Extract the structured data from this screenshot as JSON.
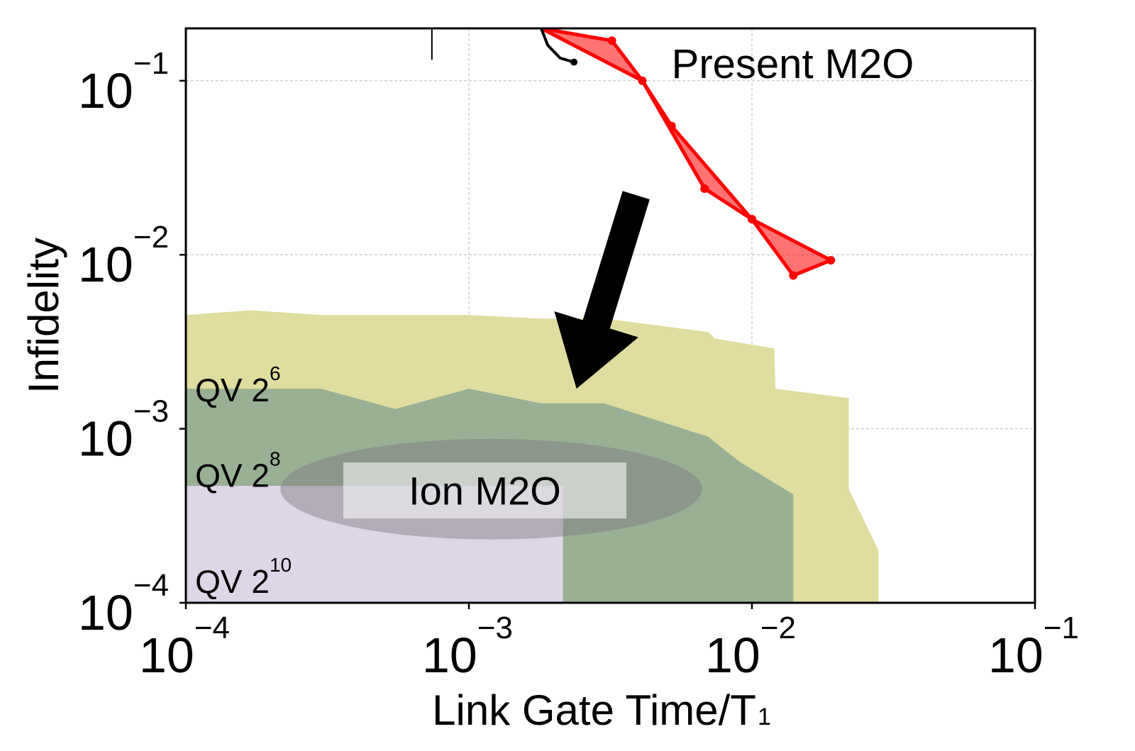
{
  "chart_data": {
    "type": "area",
    "title": "",
    "xlabel": "Link Gate Time/T",
    "xlabel_sub": "1",
    "ylabel": "Infidelity",
    "xscale": "log",
    "yscale": "log",
    "xlim": [
      0.0001,
      0.1
    ],
    "ylim": [
      0.0001,
      0.2
    ],
    "grid": true,
    "x_ticks": [
      {
        "base": "10",
        "exp": "−4",
        "value": 0.0001
      },
      {
        "base": "10",
        "exp": "−3",
        "value": 0.001
      },
      {
        "base": "10",
        "exp": "−2",
        "value": 0.01
      },
      {
        "base": "10",
        "exp": "−1",
        "value": 0.1
      }
    ],
    "y_ticks": [
      {
        "base": "10",
        "exp": "−4",
        "value": 0.0001
      },
      {
        "base": "10",
        "exp": "−3",
        "value": 0.001
      },
      {
        "base": "10",
        "exp": "−2",
        "value": 0.01
      },
      {
        "base": "10",
        "exp": "−1",
        "value": 0.1
      }
    ],
    "regions": [
      {
        "label_base": "QV 2",
        "label_exp": "6",
        "color": "#dfdea0",
        "label_at": [
          0.000103,
          0.0017
        ],
        "x": [
          0.0001,
          0.00017,
          0.0003,
          0.001,
          0.0018,
          0.003,
          0.007,
          0.0074,
          0.012,
          0.0121,
          0.022,
          0.022,
          0.028,
          0.028
        ],
        "y": [
          0.0045,
          0.0048,
          0.0045,
          0.0045,
          0.0043,
          0.0043,
          0.0036,
          0.0033,
          0.0029,
          0.0017,
          0.0015,
          0.00045,
          0.0002,
          0.0001
        ]
      },
      {
        "label_base": "QV 2",
        "label_exp": "8",
        "color": "#99b095",
        "label_at": [
          0.000103,
          0.00055
        ],
        "x": [
          0.0001,
          0.0003,
          0.00055,
          0.001,
          0.0018,
          0.003,
          0.007,
          0.009,
          0.014,
          0.014
        ],
        "y": [
          0.0017,
          0.0017,
          0.0013,
          0.0017,
          0.0014,
          0.0014,
          0.0009,
          0.00065,
          0.00042,
          0.0001
        ]
      },
      {
        "label_base": "QV 2",
        "label_exp": "10",
        "color": "#ddd6e7",
        "label_at": [
          0.000103,
          0.000135
        ],
        "x": [
          0.0001,
          0.00215,
          0.00215
        ],
        "y": [
          0.00047,
          0.00047,
          0.0001
        ]
      }
    ],
    "ellipse": {
      "label": "Ion M2O",
      "center": [
        0.0012,
        0.00045
      ],
      "x_range": [
        0.00022,
        0.0068
      ],
      "y_range": [
        0.00023,
        0.00087
      ],
      "color": "#7c7a7f",
      "label_box_x": [
        0.00036,
        0.0036
      ],
      "label_box_y": [
        0.000305,
        0.00064
      ]
    },
    "present_m2o": {
      "label": "Present M2O",
      "label_at": [
        0.0052,
        0.125
      ],
      "color": "#ff0000",
      "upper": {
        "x": [
          0.0018,
          0.0032,
          0.0041,
          0.0068,
          0.01,
          0.019
        ],
        "y": [
          0.2,
          0.17,
          0.1,
          0.024,
          0.016,
          0.0093
        ]
      },
      "lower": {
        "x": [
          0.0018,
          0.0041,
          0.0052,
          0.01,
          0.014
        ],
        "y": [
          0.2,
          0.1,
          0.055,
          0.016,
          0.0076
        ]
      },
      "black_curve": {
        "x": [
          0.0018,
          0.0019,
          0.0021,
          0.00235
        ],
        "y": [
          0.2,
          0.16,
          0.135,
          0.128
        ]
      },
      "black_tick": {
        "x": 0.00074,
        "y": [
          0.2,
          0.132
        ]
      }
    },
    "arrow": {
      "from": [
        0.0039,
        0.022
      ],
      "to": [
        0.0024,
        0.0017
      ],
      "color": "#000000"
    }
  }
}
